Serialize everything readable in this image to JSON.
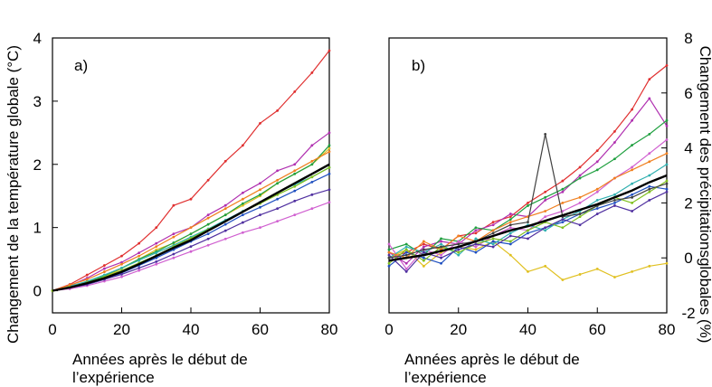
{
  "chart_data": [
    {
      "type": "line",
      "panel_label": "a)",
      "xlabel": "Années après le début de l’expérience",
      "ylabel": "Changement de la température globale (°C)",
      "xlim": [
        0,
        80
      ],
      "ylim": [
        -0.35,
        4
      ],
      "x_ticks": [
        0,
        20,
        40,
        60,
        80
      ],
      "y_ticks": [
        0,
        1,
        2,
        3,
        4
      ],
      "grid": false,
      "x": [
        0,
        5,
        10,
        15,
        20,
        25,
        30,
        35,
        40,
        45,
        50,
        55,
        60,
        65,
        70,
        75,
        80
      ],
      "series": [
        {
          "color": "#000000",
          "mean": true,
          "values": [
            0.0,
            0.05,
            0.12,
            0.2,
            0.3,
            0.42,
            0.55,
            0.68,
            0.8,
            0.95,
            1.1,
            1.25,
            1.4,
            1.55,
            1.7,
            1.85,
            2.0
          ]
        },
        {
          "color": "#e03030",
          "values": [
            0.0,
            0.1,
            0.25,
            0.4,
            0.55,
            0.75,
            1.0,
            1.35,
            1.45,
            1.75,
            2.05,
            2.3,
            2.65,
            2.85,
            3.15,
            3.45,
            3.8
          ]
        },
        {
          "color": "#b030b0",
          "values": [
            0.0,
            0.08,
            0.2,
            0.35,
            0.45,
            0.6,
            0.75,
            0.9,
            1.0,
            1.2,
            1.35,
            1.55,
            1.7,
            1.9,
            2.0,
            2.3,
            2.5
          ]
        },
        {
          "color": "#e0c020",
          "values": [
            0.0,
            0.05,
            0.12,
            0.22,
            0.35,
            0.5,
            0.65,
            0.75,
            0.9,
            1.05,
            1.2,
            1.35,
            1.5,
            1.7,
            1.85,
            2.0,
            2.25
          ]
        },
        {
          "color": "#20a040",
          "values": [
            0.0,
            0.06,
            0.14,
            0.24,
            0.36,
            0.5,
            0.62,
            0.76,
            0.9,
            1.05,
            1.2,
            1.38,
            1.52,
            1.7,
            1.85,
            2.0,
            2.3
          ]
        },
        {
          "color": "#2050c0",
          "values": [
            0.0,
            0.04,
            0.1,
            0.18,
            0.28,
            0.4,
            0.52,
            0.65,
            0.78,
            0.9,
            1.05,
            1.2,
            1.32,
            1.45,
            1.58,
            1.72,
            1.85
          ]
        },
        {
          "color": "#d060d0",
          "values": [
            0.0,
            0.03,
            0.08,
            0.15,
            0.22,
            0.32,
            0.42,
            0.52,
            0.62,
            0.72,
            0.82,
            0.92,
            1.0,
            1.1,
            1.2,
            1.3,
            1.4
          ]
        },
        {
          "color": "#5030a0",
          "values": [
            0.0,
            0.05,
            0.1,
            0.18,
            0.26,
            0.36,
            0.46,
            0.58,
            0.7,
            0.82,
            0.95,
            1.08,
            1.2,
            1.3,
            1.42,
            1.52,
            1.6
          ]
        },
        {
          "color": "#30b0b0",
          "values": [
            0.0,
            0.07,
            0.15,
            0.25,
            0.36,
            0.48,
            0.6,
            0.72,
            0.85,
            0.98,
            1.12,
            1.26,
            1.4,
            1.55,
            1.68,
            1.8,
            1.95
          ]
        },
        {
          "color": "#f08020",
          "values": [
            0.0,
            0.09,
            0.18,
            0.3,
            0.42,
            0.55,
            0.7,
            0.85,
            1.0,
            1.15,
            1.3,
            1.45,
            1.6,
            1.75,
            1.9,
            2.05,
            2.2
          ]
        },
        {
          "color": "#80c020",
          "values": [
            0.0,
            0.06,
            0.13,
            0.22,
            0.32,
            0.44,
            0.56,
            0.7,
            0.83,
            0.97,
            1.1,
            1.25,
            1.38,
            1.52,
            1.65,
            1.8,
            1.95
          ]
        }
      ]
    },
    {
      "type": "line",
      "panel_label": "b)",
      "xlabel": "Années après le début de l’expérience",
      "ylabel": "Changement des précipitationsglobales (%)",
      "xlim": [
        0,
        80
      ],
      "ylim": [
        -2,
        8
      ],
      "x_ticks": [
        0,
        20,
        40,
        60,
        80
      ],
      "y_ticks": [
        -2,
        0,
        2,
        4,
        6,
        8
      ],
      "grid": false,
      "x": [
        0,
        5,
        10,
        15,
        20,
        25,
        30,
        35,
        40,
        45,
        50,
        55,
        60,
        65,
        70,
        75,
        80
      ],
      "series": [
        {
          "color": "#000000",
          "mean": true,
          "values": [
            -0.1,
            0.0,
            0.1,
            0.25,
            0.4,
            0.6,
            0.8,
            1.0,
            1.15,
            1.35,
            1.55,
            1.75,
            1.95,
            2.2,
            2.45,
            2.75,
            3.0
          ]
        },
        {
          "color": "#e03030",
          "values": [
            0.0,
            0.2,
            0.5,
            0.3,
            0.8,
            0.9,
            1.3,
            1.5,
            2.0,
            2.4,
            2.8,
            3.3,
            3.9,
            4.6,
            5.4,
            6.5,
            7.0
          ]
        },
        {
          "color": "#b030b0",
          "values": [
            0.2,
            -0.2,
            0.4,
            0.6,
            0.5,
            1.0,
            1.2,
            1.6,
            1.5,
            2.1,
            2.4,
            3.0,
            3.5,
            4.2,
            5.0,
            5.8,
            4.8
          ]
        },
        {
          "color": "#e0c020",
          "values": [
            0.0,
            0.3,
            -0.3,
            0.2,
            0.4,
            0.3,
            0.6,
            0.1,
            -0.5,
            -0.3,
            -0.8,
            -0.6,
            -0.4,
            -0.7,
            -0.5,
            -0.3,
            -0.2
          ]
        },
        {
          "color": "#20a040",
          "values": [
            0.3,
            0.5,
            0.1,
            0.7,
            0.6,
            1.1,
            1.0,
            1.4,
            1.9,
            2.2,
            2.5,
            2.9,
            3.2,
            3.6,
            4.1,
            4.5,
            5.0
          ]
        },
        {
          "color": "#2050c0",
          "values": [
            -0.3,
            0.2,
            0.0,
            -0.2,
            0.4,
            0.2,
            0.6,
            0.5,
            0.9,
            1.1,
            1.3,
            1.6,
            1.8,
            2.0,
            2.3,
            2.6,
            2.5
          ]
        },
        {
          "color": "#d060d0",
          "values": [
            0.5,
            -0.4,
            0.3,
            0.1,
            0.6,
            0.4,
            0.8,
            1.1,
            1.0,
            1.5,
            1.7,
            2.0,
            2.4,
            2.9,
            3.3,
            3.8,
            4.3
          ]
        },
        {
          "color": "#30b0b0",
          "values": [
            0.0,
            0.4,
            0.2,
            0.5,
            0.1,
            0.7,
            0.5,
            0.9,
            1.2,
            1.0,
            1.4,
            1.7,
            2.1,
            2.3,
            2.7,
            3.0,
            3.4
          ]
        },
        {
          "color": "#f08020",
          "values": [
            0.2,
            0.0,
            0.6,
            0.3,
            0.8,
            0.6,
            1.0,
            1.3,
            1.5,
            1.7,
            2.0,
            2.2,
            2.5,
            2.9,
            3.2,
            3.5,
            3.8
          ]
        },
        {
          "color": "#80c020",
          "values": [
            -0.2,
            0.3,
            -0.1,
            0.4,
            0.2,
            0.5,
            0.7,
            0.6,
            1.0,
            1.3,
            1.1,
            1.5,
            1.9,
            2.2,
            2.0,
            2.4,
            2.8
          ]
        },
        {
          "color": "#5030a0",
          "values": [
            0.1,
            -0.5,
            0.2,
            0.0,
            0.3,
            0.5,
            0.4,
            0.8,
            0.7,
            1.1,
            1.4,
            1.2,
            1.6,
            1.9,
            1.7,
            2.1,
            2.4
          ]
        },
        {
          "color": "#404040",
          "values": [
            0.0,
            0.1,
            0.3,
            0.4,
            0.5,
            0.6,
            0.9,
            1.2,
            1.3,
            4.5,
            1.5,
            1.6,
            1.9,
            2.1,
            2.2,
            2.5,
            2.7
          ]
        }
      ]
    }
  ]
}
